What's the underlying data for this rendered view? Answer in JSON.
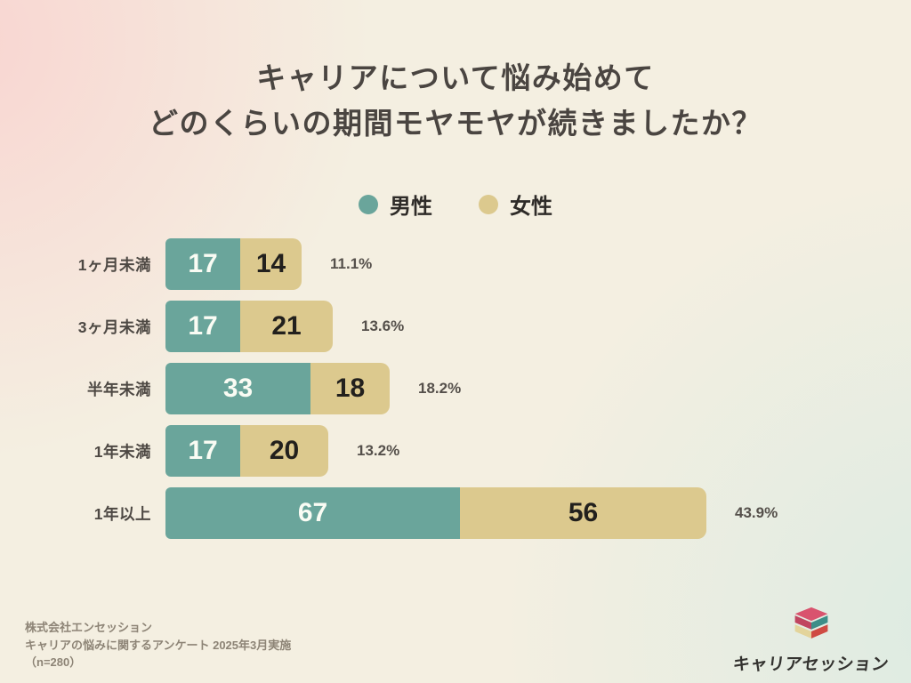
{
  "title": {
    "line1": "キャリアについて悩み始めて",
    "line2": "どのくらいの期間モヤモヤが続きましたか？"
  },
  "legend": {
    "items": [
      {
        "label": "男性",
        "color": "#6AA59B"
      },
      {
        "label": "女性",
        "color": "#DCC98E"
      }
    ]
  },
  "chart_data": {
    "type": "bar",
    "orientation": "horizontal",
    "stacked": true,
    "title": "キャリアについて悩み始めて どのくらいの期間モヤモヤが続きましたか？",
    "categories": [
      "1ヶ月未満",
      "3ヶ月未満",
      "半年未満",
      "1年未満",
      "1年以上"
    ],
    "series": [
      {
        "name": "男性",
        "color": "#6AA59B",
        "value_text_color": "#FAFCF4",
        "values": [
          17,
          17,
          33,
          17,
          67
        ]
      },
      {
        "name": "女性",
        "color": "#DCC98E",
        "value_text_color": "#22201D",
        "values": [
          14,
          21,
          18,
          20,
          56
        ]
      }
    ],
    "row_percent_labels": [
      "11.1%",
      "13.6%",
      "18.2%",
      "13.2%",
      "43.9%"
    ],
    "legend_position": "top-center",
    "grid": false,
    "value_axis_visible": false,
    "sample_size": "n=280"
  },
  "footer": {
    "source_line1": "株式会社エンセッション",
    "source_line2": "キャリアの悩みに関するアンケート 2025年3月実施",
    "source_line3": "（n=280）",
    "logo_text": "キャリアセッション"
  },
  "logo_colors": {
    "pink": "#D9536E",
    "teal": "#3E8E88",
    "cream": "#E3D49B",
    "red": "#CF4B43"
  }
}
